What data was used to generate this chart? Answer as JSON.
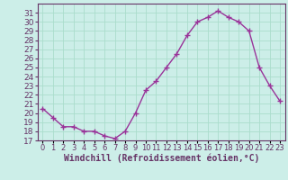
{
  "hours": [
    0,
    1,
    2,
    3,
    4,
    5,
    6,
    7,
    8,
    9,
    10,
    11,
    12,
    13,
    14,
    15,
    16,
    17,
    18,
    19,
    20,
    21,
    22,
    23
  ],
  "values": [
    20.5,
    19.5,
    18.5,
    18.5,
    18.0,
    18.0,
    17.5,
    17.2,
    18.0,
    20.0,
    22.5,
    23.5,
    25.0,
    26.5,
    28.5,
    30.0,
    30.5,
    31.2,
    30.5,
    30.0,
    29.0,
    25.0,
    23.0,
    21.3
  ],
  "ylim": [
    17,
    32
  ],
  "yticks": [
    17,
    18,
    19,
    20,
    21,
    22,
    23,
    24,
    25,
    26,
    27,
    28,
    29,
    30,
    31
  ],
  "xtick_labels": [
    "0",
    "1",
    "2",
    "3",
    "4",
    "5",
    "6",
    "7",
    "8",
    "9",
    "10",
    "11",
    "12",
    "13",
    "14",
    "15",
    "16",
    "17",
    "18",
    "19",
    "20",
    "21",
    "22",
    "23"
  ],
  "line_color": "#993399",
  "bg_color": "#cceee8",
  "grid_color": "#aaddcc",
  "xlabel": "Windchill (Refroidissement éolien,°C)",
  "marker": "+",
  "marker_size": 4,
  "line_width": 1.0,
  "spine_color": "#663366",
  "tick_color": "#663366",
  "label_color": "#663366",
  "font_size": 6.5
}
